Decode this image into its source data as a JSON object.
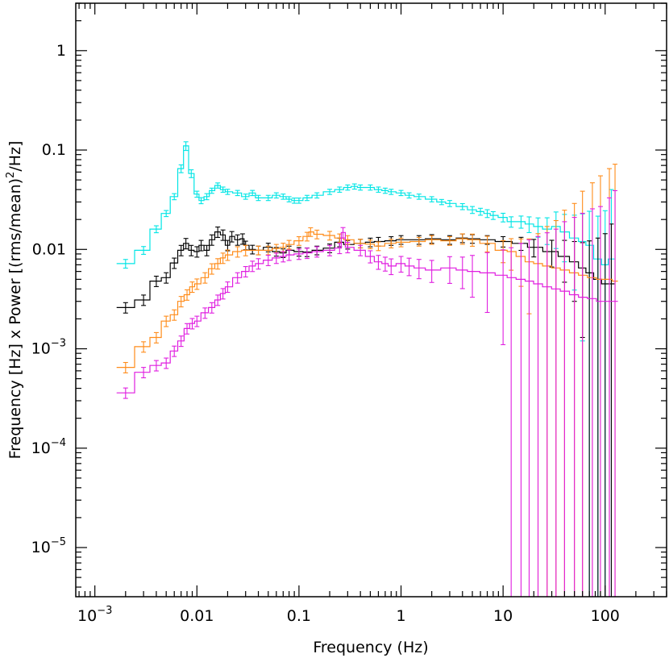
{
  "chart_data": {
    "type": "line",
    "xlabel": "Frequency (Hz)",
    "ylabel_parts": {
      "main": "Frequency [Hz] x Power [(rms/mean)",
      "sup": "2",
      "tail": "/Hz]"
    },
    "xscale": "log",
    "yscale": "log",
    "xlim": [
      0.00065,
      400
    ],
    "ylim": [
      3.2e-06,
      3
    ],
    "grid": false,
    "legend": "none",
    "x_ticks": [
      {
        "value": 0.001,
        "base": "10",
        "exp": "−3"
      },
      {
        "value": 0.01,
        "text": "0.01"
      },
      {
        "value": 0.1,
        "text": "0.1"
      },
      {
        "value": 1,
        "text": "1"
      },
      {
        "value": 10,
        "text": "10"
      },
      {
        "value": 100,
        "text": "100"
      }
    ],
    "y_ticks": [
      {
        "value": 1,
        "text": "1"
      },
      {
        "value": 0.1,
        "text": "0.1"
      },
      {
        "value": 0.01,
        "text": "0.01"
      },
      {
        "value": 0.001,
        "base": "10",
        "exp": "−3"
      },
      {
        "value": 0.0001,
        "base": "10",
        "exp": "−4"
      },
      {
        "value": 1e-05,
        "base": "10",
        "exp": "−5"
      }
    ],
    "series": [
      {
        "color": "#00e5e5",
        "points": [
          [
            0.002,
            0.0072,
            0.1
          ],
          [
            0.003,
            0.0098,
            0.09
          ],
          [
            0.004,
            0.016,
            0.08
          ],
          [
            0.005,
            0.023,
            0.07
          ],
          [
            0.006,
            0.034,
            0.07
          ],
          [
            0.007,
            0.065,
            0.09
          ],
          [
            0.0078,
            0.11,
            0.1
          ],
          [
            0.0088,
            0.058,
            0.09
          ],
          [
            0.01,
            0.036,
            0.07
          ],
          [
            0.011,
            0.031,
            0.07
          ],
          [
            0.0125,
            0.034,
            0.07
          ],
          [
            0.014,
            0.039,
            0.06
          ],
          [
            0.016,
            0.044,
            0.06
          ],
          [
            0.018,
            0.04,
            0.06
          ],
          [
            0.02,
            0.038,
            0.06
          ],
          [
            0.025,
            0.037,
            0.06
          ],
          [
            0.03,
            0.034,
            0.06
          ],
          [
            0.035,
            0.037,
            0.06
          ],
          [
            0.04,
            0.033,
            0.06
          ],
          [
            0.05,
            0.033,
            0.06
          ],
          [
            0.06,
            0.035,
            0.06
          ],
          [
            0.07,
            0.034,
            0.06
          ],
          [
            0.08,
            0.032,
            0.06
          ],
          [
            0.09,
            0.031,
            0.06
          ],
          [
            0.1,
            0.031,
            0.06
          ],
          [
            0.12,
            0.033,
            0.06
          ],
          [
            0.15,
            0.035,
            0.06
          ],
          [
            0.2,
            0.038,
            0.06
          ],
          [
            0.25,
            0.04,
            0.06
          ],
          [
            0.3,
            0.042,
            0.06
          ],
          [
            0.35,
            0.043,
            0.06
          ],
          [
            0.4,
            0.042,
            0.06
          ],
          [
            0.5,
            0.042,
            0.06
          ],
          [
            0.6,
            0.04,
            0.06
          ],
          [
            0.7,
            0.039,
            0.06
          ],
          [
            0.8,
            0.038,
            0.06
          ],
          [
            1,
            0.037,
            0.06
          ],
          [
            1.2,
            0.035,
            0.06
          ],
          [
            1.5,
            0.034,
            0.06
          ],
          [
            2,
            0.032,
            0.06
          ],
          [
            2.5,
            0.03,
            0.06
          ],
          [
            3,
            0.029,
            0.07
          ],
          [
            4,
            0.027,
            0.07
          ],
          [
            5,
            0.025,
            0.08
          ],
          [
            6,
            0.024,
            0.08
          ],
          [
            7,
            0.023,
            0.09
          ],
          [
            8,
            0.022,
            0.09
          ],
          [
            10,
            0.021,
            0.1
          ],
          [
            12,
            0.019,
            0.12
          ],
          [
            15,
            0.019,
            0.14
          ],
          [
            18,
            0.018,
            0.18
          ],
          [
            22,
            0.017,
            0.22
          ],
          [
            27,
            0.016,
            0.3
          ],
          [
            33,
            0.017,
            0.4
          ],
          [
            40,
            0.015,
            0.5
          ],
          [
            50,
            0.013,
            0.7
          ],
          [
            60,
            0.012,
            0.9
          ],
          [
            70,
            0.011,
            1.2
          ],
          [
            85,
            0.008,
            1.7
          ],
          [
            100,
            0.007,
            2.5
          ],
          [
            115,
            0.008,
            4
          ]
        ]
      },
      {
        "color": "#000000",
        "points": [
          [
            0.002,
            0.0026,
            0.12
          ],
          [
            0.003,
            0.0031,
            0.12
          ],
          [
            0.004,
            0.0048,
            0.12
          ],
          [
            0.005,
            0.0052,
            0.12
          ],
          [
            0.006,
            0.0073,
            0.12
          ],
          [
            0.007,
            0.0098,
            0.12
          ],
          [
            0.0078,
            0.0115,
            0.12
          ],
          [
            0.0088,
            0.0098,
            0.12
          ],
          [
            0.01,
            0.0095,
            0.12
          ],
          [
            0.011,
            0.011,
            0.12
          ],
          [
            0.0125,
            0.0098,
            0.12
          ],
          [
            0.014,
            0.0125,
            0.12
          ],
          [
            0.016,
            0.015,
            0.12
          ],
          [
            0.018,
            0.014,
            0.12
          ],
          [
            0.02,
            0.011,
            0.12
          ],
          [
            0.022,
            0.0135,
            0.12
          ],
          [
            0.025,
            0.0125,
            0.12
          ],
          [
            0.028,
            0.0128,
            0.12
          ],
          [
            0.03,
            0.011,
            0.1
          ],
          [
            0.035,
            0.01,
            0.1
          ],
          [
            0.04,
            0.0098,
            0.1
          ],
          [
            0.05,
            0.0105,
            0.1
          ],
          [
            0.06,
            0.0095,
            0.1
          ],
          [
            0.07,
            0.0092,
            0.1
          ],
          [
            0.08,
            0.0098,
            0.1
          ],
          [
            0.1,
            0.0095,
            0.1
          ],
          [
            0.12,
            0.0094,
            0.1
          ],
          [
            0.15,
            0.0098,
            0.1
          ],
          [
            0.2,
            0.0103,
            0.1
          ],
          [
            0.25,
            0.0118,
            0.1
          ],
          [
            0.3,
            0.0112,
            0.1
          ],
          [
            0.4,
            0.0115,
            0.1
          ],
          [
            0.5,
            0.0118,
            0.1
          ],
          [
            0.6,
            0.012,
            0.1
          ],
          [
            0.8,
            0.0122,
            0.1
          ],
          [
            1,
            0.0125,
            0.1
          ],
          [
            1.5,
            0.0125,
            0.1
          ],
          [
            2,
            0.0128,
            0.1
          ],
          [
            3,
            0.0125,
            0.1
          ],
          [
            4,
            0.013,
            0.1
          ],
          [
            5,
            0.0128,
            0.1
          ],
          [
            7,
            0.0125,
            0.1
          ],
          [
            10,
            0.012,
            0.12
          ],
          [
            15,
            0.0115,
            0.15
          ],
          [
            20,
            0.0105,
            0.2
          ],
          [
            30,
            0.0095,
            0.3
          ],
          [
            40,
            0.0085,
            0.45
          ],
          [
            50,
            0.0075,
            0.6
          ],
          [
            60,
            0.0065,
            0.8
          ],
          [
            70,
            0.0058,
            1.1
          ],
          [
            85,
            0.005,
            1.6
          ],
          [
            100,
            0.0045,
            2.2
          ],
          [
            115,
            0.0045,
            3
          ]
        ]
      },
      {
        "color": "#ff8c1a",
        "points": [
          [
            0.002,
            0.00065,
            0.12
          ],
          [
            0.003,
            0.00105,
            0.12
          ],
          [
            0.004,
            0.0013,
            0.12
          ],
          [
            0.005,
            0.0019,
            0.12
          ],
          [
            0.006,
            0.0022,
            0.12
          ],
          [
            0.007,
            0.003,
            0.12
          ],
          [
            0.008,
            0.0035,
            0.12
          ],
          [
            0.009,
            0.0042,
            0.12
          ],
          [
            0.01,
            0.0045,
            0.12
          ],
          [
            0.012,
            0.0052,
            0.12
          ],
          [
            0.014,
            0.0064,
            0.12
          ],
          [
            0.016,
            0.0072,
            0.12
          ],
          [
            0.018,
            0.0082,
            0.12
          ],
          [
            0.02,
            0.0088,
            0.12
          ],
          [
            0.025,
            0.0095,
            0.12
          ],
          [
            0.03,
            0.0098,
            0.12
          ],
          [
            0.04,
            0.0098,
            0.1
          ],
          [
            0.05,
            0.0098,
            0.1
          ],
          [
            0.06,
            0.0102,
            0.1
          ],
          [
            0.07,
            0.0105,
            0.1
          ],
          [
            0.08,
            0.0112,
            0.1
          ],
          [
            0.1,
            0.0122,
            0.1
          ],
          [
            0.12,
            0.0135,
            0.1
          ],
          [
            0.13,
            0.015,
            0.1
          ],
          [
            0.15,
            0.0142,
            0.1
          ],
          [
            0.2,
            0.0138,
            0.1
          ],
          [
            0.25,
            0.013,
            0.1
          ],
          [
            0.3,
            0.0125,
            0.1
          ],
          [
            0.4,
            0.0115,
            0.1
          ],
          [
            0.5,
            0.0113,
            0.1
          ],
          [
            0.6,
            0.0108,
            0.1
          ],
          [
            0.8,
            0.0115,
            0.1
          ],
          [
            1,
            0.0118,
            0.1
          ],
          [
            1.5,
            0.012,
            0.1
          ],
          [
            2,
            0.0125,
            0.1
          ],
          [
            3,
            0.0122,
            0.1
          ],
          [
            4,
            0.0128,
            0.12
          ],
          [
            5,
            0.0125,
            0.14
          ],
          [
            7,
            0.0115,
            0.18
          ],
          [
            10,
            0.0098,
            0.25
          ],
          [
            12,
            0.0095,
            0.35
          ],
          [
            15,
            0.0085,
            0.5
          ],
          [
            18,
            0.0075,
            0.7
          ],
          [
            22,
            0.0072,
            1
          ],
          [
            27,
            0.0068,
            1.5
          ],
          [
            33,
            0.0065,
            2
          ],
          [
            40,
            0.0062,
            3
          ],
          [
            50,
            0.0058,
            4
          ],
          [
            60,
            0.0055,
            6
          ],
          [
            75,
            0.0052,
            8
          ],
          [
            90,
            0.005,
            10
          ],
          [
            110,
            0.005,
            12
          ],
          [
            125,
            0.0048,
            14
          ]
        ]
      },
      {
        "color": "#e01ee0",
        "points": [
          [
            0.002,
            0.00036,
            0.12
          ],
          [
            0.003,
            0.00058,
            0.12
          ],
          [
            0.004,
            0.00068,
            0.12
          ],
          [
            0.005,
            0.00072,
            0.12
          ],
          [
            0.006,
            0.00095,
            0.12
          ],
          [
            0.007,
            0.0012,
            0.12
          ],
          [
            0.008,
            0.0016,
            0.12
          ],
          [
            0.009,
            0.0018,
            0.12
          ],
          [
            0.01,
            0.0019,
            0.12
          ],
          [
            0.012,
            0.0023,
            0.12
          ],
          [
            0.014,
            0.0026,
            0.12
          ],
          [
            0.016,
            0.0031,
            0.12
          ],
          [
            0.018,
            0.0036,
            0.12
          ],
          [
            0.02,
            0.0042,
            0.12
          ],
          [
            0.025,
            0.0052,
            0.12
          ],
          [
            0.03,
            0.006,
            0.12
          ],
          [
            0.035,
            0.0068,
            0.12
          ],
          [
            0.04,
            0.0072,
            0.12
          ],
          [
            0.05,
            0.0078,
            0.12
          ],
          [
            0.06,
            0.0082,
            0.12
          ],
          [
            0.07,
            0.0085,
            0.12
          ],
          [
            0.08,
            0.0088,
            0.12
          ],
          [
            0.1,
            0.009,
            0.12
          ],
          [
            0.12,
            0.0092,
            0.12
          ],
          [
            0.15,
            0.0095,
            0.12
          ],
          [
            0.2,
            0.0098,
            0.12
          ],
          [
            0.25,
            0.0103,
            0.12
          ],
          [
            0.27,
            0.0148,
            0.12
          ],
          [
            0.3,
            0.0105,
            0.12
          ],
          [
            0.4,
            0.0098,
            0.12
          ],
          [
            0.5,
            0.0085,
            0.14
          ],
          [
            0.6,
            0.0075,
            0.16
          ],
          [
            0.7,
            0.0072,
            0.16
          ],
          [
            0.8,
            0.0068,
            0.18
          ],
          [
            1,
            0.0072,
            0.18
          ],
          [
            1.2,
            0.0068,
            0.2
          ],
          [
            1.5,
            0.0065,
            0.22
          ],
          [
            2,
            0.0062,
            0.25
          ],
          [
            3,
            0.0065,
            0.3
          ],
          [
            4,
            0.0062,
            0.35
          ],
          [
            5,
            0.006,
            0.45
          ],
          [
            7,
            0.0058,
            0.6
          ],
          [
            10,
            0.0055,
            0.8
          ],
          [
            12,
            0.0052,
            1
          ],
          [
            15,
            0.005,
            1.3
          ],
          [
            18,
            0.0048,
            1.6
          ],
          [
            22,
            0.0045,
            2
          ],
          [
            27,
            0.0042,
            2.5
          ],
          [
            33,
            0.004,
            3
          ],
          [
            40,
            0.0038,
            4
          ],
          [
            50,
            0.0035,
            5
          ],
          [
            60,
            0.0033,
            6
          ],
          [
            75,
            0.0032,
            7
          ],
          [
            90,
            0.003,
            8
          ],
          [
            110,
            0.003,
            10
          ],
          [
            125,
            0.003,
            12
          ]
        ]
      }
    ]
  }
}
